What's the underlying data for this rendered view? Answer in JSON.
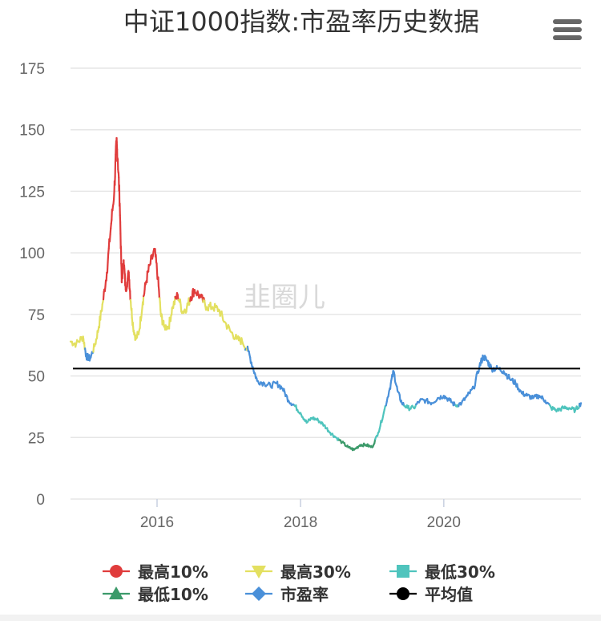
{
  "chart_data": {
    "type": "line",
    "title": "中证1000指数:市盈率历史数据",
    "watermark": "韭圈儿",
    "xlabel": "",
    "ylabel": "",
    "ylim": [
      0,
      175
    ],
    "yticks": [
      0,
      25,
      50,
      75,
      100,
      125,
      150,
      175
    ],
    "xlim": [
      "2014-10-17",
      "2021-11-30"
    ],
    "xticks": [
      "2016",
      "2018",
      "2020"
    ],
    "grid": true,
    "legend_position": "bottom",
    "average": 53,
    "series": [
      {
        "name": "市盈率",
        "color": "#4a90d9",
        "points": [
          [
            "2014-10-17",
            64
          ],
          [
            "2014-11-15",
            63
          ],
          [
            "2014-12-20",
            66
          ],
          [
            "2015-01-05",
            58
          ],
          [
            "2015-01-25",
            57
          ],
          [
            "2015-02-20",
            63
          ],
          [
            "2015-03-10",
            70
          ],
          [
            "2015-03-31",
            80
          ],
          [
            "2015-04-20",
            92
          ],
          [
            "2015-05-10",
            110
          ],
          [
            "2015-05-28",
            125
          ],
          [
            "2015-06-08",
            145
          ],
          [
            "2015-06-15",
            138
          ],
          [
            "2015-06-25",
            120
          ],
          [
            "2015-07-05",
            88
          ],
          [
            "2015-07-15",
            97
          ],
          [
            "2015-07-25",
            85
          ],
          [
            "2015-08-10",
            92
          ],
          [
            "2015-08-20",
            80
          ],
          [
            "2015-09-01",
            70
          ],
          [
            "2015-09-15",
            65
          ],
          [
            "2015-10-01",
            68
          ],
          [
            "2015-10-20",
            80
          ],
          [
            "2015-11-05",
            88
          ],
          [
            "2015-11-25",
            95
          ],
          [
            "2015-12-20",
            101
          ],
          [
            "2016-01-05",
            90
          ],
          [
            "2016-01-20",
            75
          ],
          [
            "2016-02-05",
            70
          ],
          [
            "2016-02-29",
            70
          ],
          [
            "2016-03-20",
            78
          ],
          [
            "2016-04-15",
            83
          ],
          [
            "2016-05-10",
            76
          ],
          [
            "2016-06-01",
            78
          ],
          [
            "2016-06-20",
            82
          ],
          [
            "2016-07-10",
            85
          ],
          [
            "2016-08-10",
            82
          ],
          [
            "2016-09-10",
            78
          ],
          [
            "2016-10-10",
            78
          ],
          [
            "2016-11-10",
            77
          ],
          [
            "2016-12-10",
            72
          ],
          [
            "2017-01-10",
            68
          ],
          [
            "2017-02-10",
            65
          ],
          [
            "2017-03-10",
            64
          ],
          [
            "2017-04-10",
            60
          ],
          [
            "2017-05-05",
            53
          ],
          [
            "2017-05-25",
            48
          ],
          [
            "2017-07-01",
            47
          ],
          [
            "2017-08-01",
            46
          ],
          [
            "2017-09-01",
            47
          ],
          [
            "2017-10-01",
            45
          ],
          [
            "2017-11-01",
            40
          ],
          [
            "2017-12-01",
            38
          ],
          [
            "2018-01-01",
            35
          ],
          [
            "2018-02-01",
            31
          ],
          [
            "2018-03-01",
            33
          ],
          [
            "2018-04-01",
            32
          ],
          [
            "2018-05-01",
            30
          ],
          [
            "2018-06-01",
            27
          ],
          [
            "2018-07-01",
            25
          ],
          [
            "2018-08-01",
            23
          ],
          [
            "2018-09-01",
            21
          ],
          [
            "2018-10-01",
            20
          ],
          [
            "2018-11-01",
            22
          ],
          [
            "2018-12-01",
            22
          ],
          [
            "2019-01-01",
            21
          ],
          [
            "2019-02-01",
            27
          ],
          [
            "2019-03-01",
            35
          ],
          [
            "2019-04-01",
            45
          ],
          [
            "2019-04-20",
            52
          ],
          [
            "2019-05-10",
            44
          ],
          [
            "2019-06-01",
            39
          ],
          [
            "2019-07-01",
            37
          ],
          [
            "2019-08-01",
            37
          ],
          [
            "2019-09-01",
            40
          ],
          [
            "2019-10-01",
            40
          ],
          [
            "2019-11-01",
            39
          ],
          [
            "2019-12-01",
            41
          ],
          [
            "2020-01-01",
            42
          ],
          [
            "2020-02-01",
            40
          ],
          [
            "2020-03-01",
            38
          ],
          [
            "2020-04-01",
            39
          ],
          [
            "2020-05-01",
            42
          ],
          [
            "2020-06-01",
            45
          ],
          [
            "2020-07-01",
            54
          ],
          [
            "2020-07-20",
            58
          ],
          [
            "2020-08-10",
            56
          ],
          [
            "2020-09-01",
            53
          ],
          [
            "2020-10-01",
            53
          ],
          [
            "2020-11-01",
            52
          ],
          [
            "2020-12-01",
            49
          ],
          [
            "2021-01-01",
            47
          ],
          [
            "2021-02-01",
            43
          ],
          [
            "2021-03-01",
            42
          ],
          [
            "2021-04-01",
            41
          ],
          [
            "2021-05-01",
            42
          ],
          [
            "2021-06-01",
            40
          ],
          [
            "2021-07-01",
            37
          ],
          [
            "2021-08-01",
            36
          ],
          [
            "2021-09-01",
            37
          ],
          [
            "2021-10-01",
            37
          ],
          [
            "2021-11-01",
            36
          ],
          [
            "2021-11-30",
            39
          ]
        ]
      }
    ],
    "bands": [
      {
        "name": "最高10%",
        "color": "#e03c3c",
        "marker": "circle",
        "min": 81
      },
      {
        "name": "最高30%",
        "color": "#e3e060",
        "marker": "triangle-down",
        "min": 61,
        "max": 81
      },
      {
        "name": "最低30%",
        "color": "#4fc4bd",
        "marker": "square",
        "min": 24,
        "max": 38
      },
      {
        "name": "最低10%",
        "color": "#3c9a6a",
        "marker": "triangle-up",
        "max": 24
      },
      {
        "name": "市盈率",
        "color": "#4a90d9",
        "marker": "diamond"
      },
      {
        "name": "平均值",
        "color": "#000000",
        "marker": "circle"
      }
    ]
  },
  "menu_icon": "hamburger-menu-icon"
}
